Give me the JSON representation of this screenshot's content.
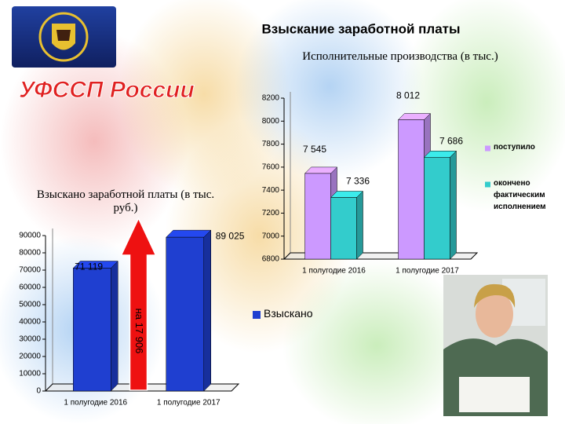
{
  "header": {
    "title": "Взыскание заработной платы",
    "logo": "УФССП России"
  },
  "chart_data": [
    {
      "type": "bar",
      "title": "Исполнительные производства (в тыс.)",
      "categories": [
        "1 полугодие 2016",
        "1 полугодие 2017"
      ],
      "series": [
        {
          "name": "поступило",
          "color": "#cc99ff",
          "values": [
            7545,
            8012
          ],
          "value_labels": [
            "7 545",
            "8 012"
          ]
        },
        {
          "name": "окончено фактическим исполнением",
          "color": "#33cccc",
          "values": [
            7336,
            7686
          ],
          "value_labels": [
            "7 336",
            "7 686"
          ]
        }
      ],
      "ylim": [
        6800,
        8200
      ],
      "yticks": [
        6800,
        7000,
        7200,
        7400,
        7600,
        7800,
        8000,
        8200
      ],
      "grid": false,
      "legend": "right"
    },
    {
      "type": "bar",
      "title": "Взыскано заработной платы (в тыс. руб.)",
      "categories": [
        "1 полугодие 2016",
        "1 полугодие 2017"
      ],
      "series": [
        {
          "name": "Взыскано",
          "color": "#1f3fd0",
          "values": [
            71119,
            89025
          ],
          "value_labels": [
            "71 119",
            "89 025"
          ]
        }
      ],
      "ylim": [
        0,
        90000
      ],
      "yticks": [
        0,
        10000,
        20000,
        30000,
        40000,
        50000,
        60000,
        70000,
        80000,
        90000
      ],
      "grid": false,
      "legend": "right",
      "annotation": "на 17 906"
    }
  ]
}
